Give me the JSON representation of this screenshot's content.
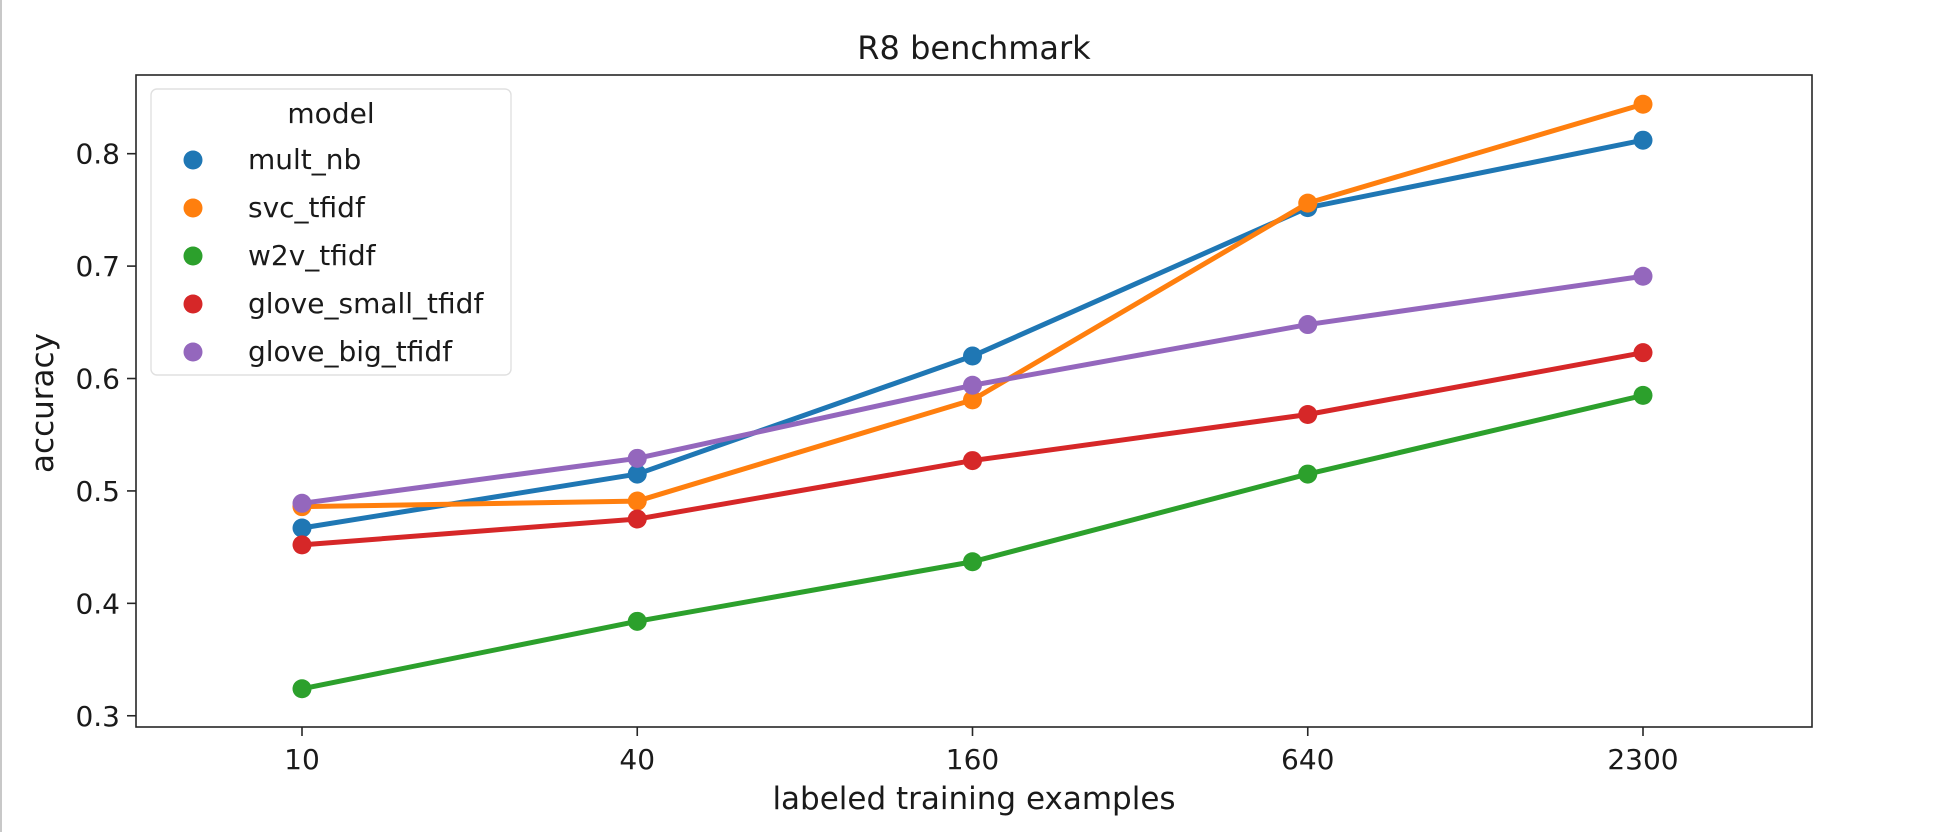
{
  "chart_data": {
    "type": "line",
    "title": "R8 benchmark",
    "xlabel": "labeled training examples",
    "ylabel": "accuracy",
    "categories": [
      "10",
      "40",
      "160",
      "640",
      "2300"
    ],
    "ylim": [
      0.29,
      0.87
    ],
    "yticks": [
      "0.3",
      "0.4",
      "0.5",
      "0.6",
      "0.7",
      "0.8"
    ],
    "legend": {
      "title": "model",
      "position": "top-left"
    },
    "grid": false,
    "series": [
      {
        "name": "mult_nb",
        "color": "#1f77b4",
        "values": [
          0.467,
          0.515,
          0.62,
          0.752,
          0.812
        ]
      },
      {
        "name": "svc_tfidf",
        "color": "#ff7f0e",
        "values": [
          0.486,
          0.491,
          0.581,
          0.756,
          0.844
        ]
      },
      {
        "name": "w2v_tfidf",
        "color": "#2ca02c",
        "values": [
          0.324,
          0.384,
          0.437,
          0.515,
          0.585
        ]
      },
      {
        "name": "glove_small_tfidf",
        "color": "#d62728",
        "values": [
          0.452,
          0.475,
          0.527,
          0.568,
          0.623
        ]
      },
      {
        "name": "glove_big_tfidf",
        "color": "#9467bd",
        "values": [
          0.489,
          0.529,
          0.594,
          0.648,
          0.691
        ]
      }
    ]
  }
}
